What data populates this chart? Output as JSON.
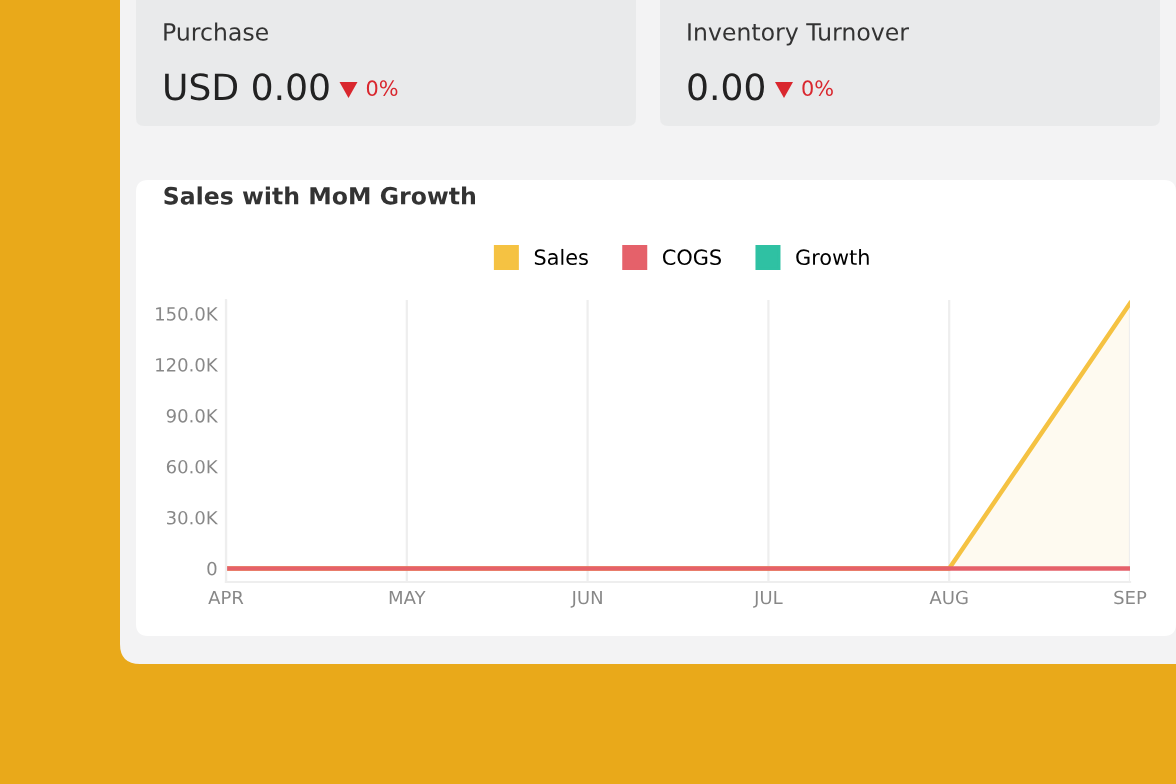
{
  "chart_data": [
    {
      "type": "other",
      "annotations": [
        "Purchase",
        "USD 0.00",
        "0%",
        "Inventory Turnover",
        "0.00",
        "0%"
      ]
    },
    {
      "type": "line",
      "title": "Sales with MoM Growth",
      "categories": [
        "APR",
        "MAY",
        "JUN",
        "JUL",
        "AUG",
        "SEP"
      ],
      "series": [
        {
          "name": "Sales",
          "color": "#f5c242",
          "type": "area",
          "values": [
            0,
            0,
            0,
            0,
            0,
            156000
          ]
        },
        {
          "name": "COGS",
          "color": "#e5616a",
          "values": [
            0,
            0,
            0,
            0,
            0,
            0
          ]
        },
        {
          "name": "Growth",
          "color": "#2fc1a3",
          "values": [
            null,
            null,
            null,
            null,
            null,
            null
          ]
        }
      ],
      "ylim": [
        -8000,
        158000
      ],
      "yticks": [
        {
          "value": 0,
          "label": "0"
        },
        {
          "value": 30000,
          "label": "30.0K"
        },
        {
          "value": 60000,
          "label": "60.0K"
        },
        {
          "value": 90000,
          "label": "90.0K"
        },
        {
          "value": 120000,
          "label": "120.0K"
        },
        {
          "value": 150000,
          "label": "150.0K"
        }
      ],
      "grid": "x",
      "legend": "top",
      "marker": "none"
    }
  ]
}
